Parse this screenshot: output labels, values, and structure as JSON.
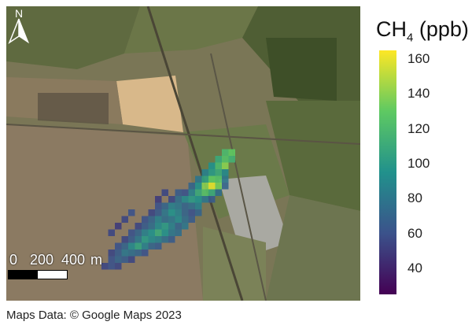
{
  "map": {
    "basemap": "satellite",
    "north_label": "N",
    "scale_bar": {
      "labels": [
        "0",
        "200",
        "400",
        "m"
      ],
      "colors": [
        "#000000",
        "#ffffff"
      ]
    }
  },
  "colorbar": {
    "quantity": "CH",
    "subscript": "4",
    "unit": "(ppb)",
    "ticks": [
      "160",
      "140",
      "120",
      "100",
      "80",
      "60",
      "40"
    ],
    "min": 25,
    "max": 165,
    "colormap": "viridis"
  },
  "credit": "Maps Data: © Google Maps 2023",
  "plume_cells": [
    [
      36,
      3,
      120
    ],
    [
      37,
      3,
      130
    ],
    [
      35,
      4,
      110
    ],
    [
      36,
      4,
      125
    ],
    [
      37,
      4,
      115
    ],
    [
      34,
      5,
      95
    ],
    [
      35,
      5,
      120
    ],
    [
      36,
      5,
      140
    ],
    [
      33,
      6,
      85
    ],
    [
      34,
      6,
      100
    ],
    [
      35,
      6,
      110
    ],
    [
      36,
      6,
      90
    ],
    [
      32,
      7,
      80
    ],
    [
      33,
      7,
      105
    ],
    [
      34,
      7,
      130
    ],
    [
      35,
      7,
      125
    ],
    [
      36,
      7,
      80
    ],
    [
      31,
      8,
      70
    ],
    [
      32,
      8,
      95
    ],
    [
      33,
      8,
      140
    ],
    [
      34,
      8,
      160
    ],
    [
      35,
      8,
      135
    ],
    [
      36,
      8,
      70
    ],
    [
      29,
      9,
      65
    ],
    [
      30,
      9,
      60
    ],
    [
      31,
      9,
      85
    ],
    [
      32,
      9,
      110
    ],
    [
      33,
      9,
      125
    ],
    [
      34,
      9,
      110
    ],
    [
      35,
      9,
      75
    ],
    [
      28,
      10,
      55
    ],
    [
      29,
      10,
      75
    ],
    [
      30,
      10,
      90
    ],
    [
      31,
      10,
      100
    ],
    [
      32,
      10,
      95
    ],
    [
      33,
      10,
      80
    ],
    [
      34,
      10,
      65
    ],
    [
      26,
      11,
      60
    ],
    [
      27,
      11,
      70
    ],
    [
      28,
      11,
      85
    ],
    [
      29,
      11,
      80
    ],
    [
      30,
      11,
      70
    ],
    [
      31,
      11,
      75
    ],
    [
      32,
      11,
      85
    ],
    [
      25,
      12,
      55
    ],
    [
      26,
      12,
      65
    ],
    [
      27,
      12,
      80
    ],
    [
      28,
      12,
      95
    ],
    [
      29,
      12,
      85
    ],
    [
      30,
      12,
      70
    ],
    [
      31,
      12,
      60
    ],
    [
      32,
      12,
      70
    ],
    [
      24,
      13,
      60
    ],
    [
      25,
      13,
      70
    ],
    [
      26,
      13,
      85
    ],
    [
      27,
      13,
      75
    ],
    [
      28,
      13,
      80
    ],
    [
      29,
      13,
      90
    ],
    [
      30,
      13,
      75
    ],
    [
      31,
      13,
      65
    ],
    [
      23,
      14,
      55
    ],
    [
      24,
      14,
      65
    ],
    [
      25,
      14,
      75
    ],
    [
      26,
      14,
      90
    ],
    [
      27,
      14,
      100
    ],
    [
      28,
      14,
      85
    ],
    [
      29,
      14,
      70
    ],
    [
      30,
      14,
      80
    ],
    [
      22,
      15,
      60
    ],
    [
      23,
      15,
      70
    ],
    [
      24,
      15,
      85
    ],
    [
      25,
      15,
      95
    ],
    [
      26,
      15,
      110
    ],
    [
      27,
      15,
      95
    ],
    [
      28,
      15,
      80
    ],
    [
      29,
      15,
      75
    ],
    [
      21,
      16,
      55
    ],
    [
      22,
      16,
      65
    ],
    [
      23,
      16,
      80
    ],
    [
      24,
      16,
      100
    ],
    [
      25,
      16,
      90
    ],
    [
      26,
      16,
      85
    ],
    [
      27,
      16,
      75
    ],
    [
      28,
      16,
      65
    ],
    [
      20,
      17,
      60
    ],
    [
      21,
      17,
      70
    ],
    [
      22,
      17,
      90
    ],
    [
      23,
      17,
      105
    ],
    [
      24,
      17,
      85
    ],
    [
      25,
      17,
      70
    ],
    [
      26,
      17,
      65
    ],
    [
      19,
      18,
      55
    ],
    [
      20,
      18,
      65
    ],
    [
      21,
      18,
      80
    ],
    [
      22,
      18,
      75
    ],
    [
      23,
      18,
      70
    ],
    [
      24,
      18,
      60
    ],
    [
      19,
      19,
      60
    ],
    [
      20,
      19,
      70
    ],
    [
      21,
      19,
      65
    ],
    [
      22,
      19,
      55
    ],
    [
      18,
      20,
      55
    ],
    [
      19,
      20,
      60
    ],
    [
      20,
      20,
      55
    ],
    [
      22,
      12,
      60
    ],
    [
      21,
      13,
      55
    ],
    [
      20,
      14,
      50
    ],
    [
      19,
      15,
      55
    ],
    [
      27,
      9,
      55
    ],
    [
      26,
      10,
      50
    ]
  ]
}
